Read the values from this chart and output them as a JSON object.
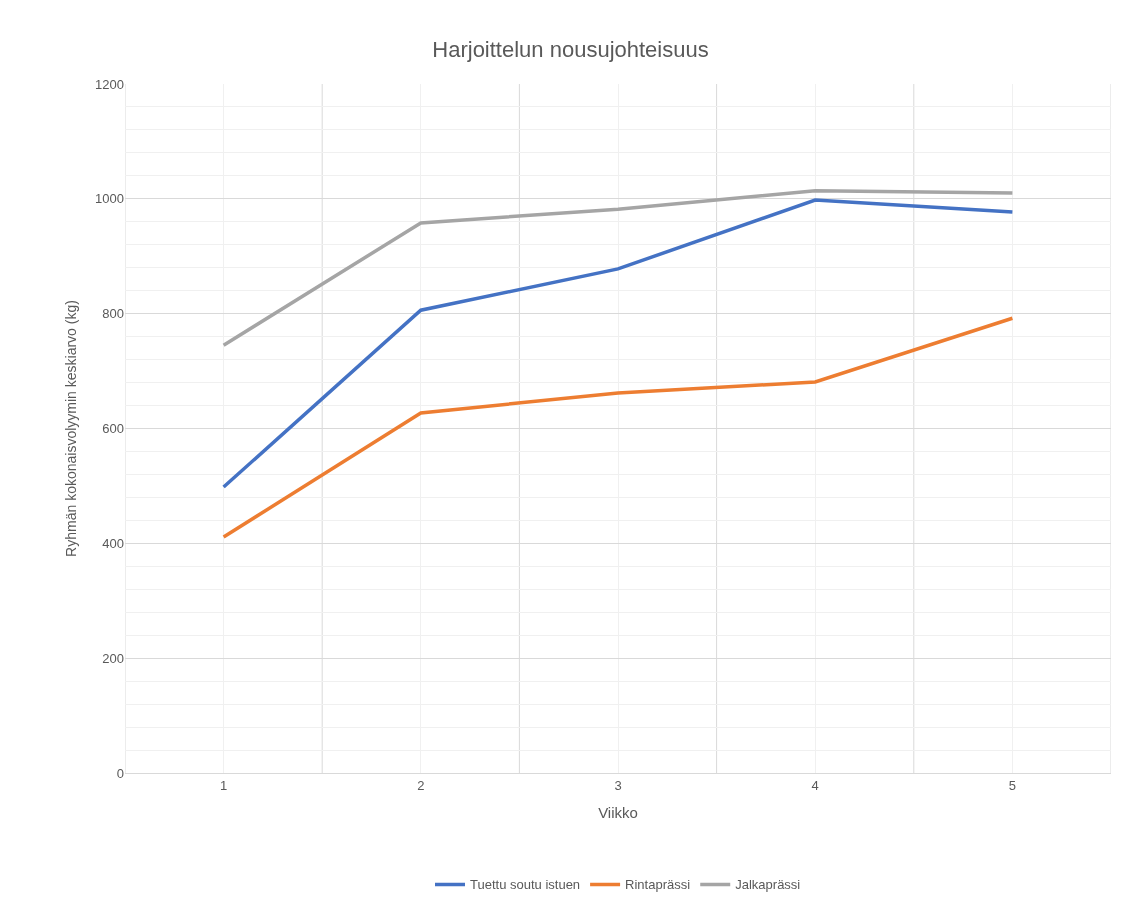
{
  "chart_data": {
    "type": "line",
    "title": "Harjoittelun nousujohteisuus",
    "xlabel": "Viikko",
    "ylabel": "Ryhmän kokonaisvolyymin keskiarvo (kg)",
    "categories": [
      "1",
      "2",
      "3",
      "4",
      "5"
    ],
    "series": [
      {
        "name": "Tuettu soutu istuen",
        "color": "#4472c4",
        "values": [
          498,
          806,
          878,
          998,
          977
        ]
      },
      {
        "name": "Rintaprässi",
        "color": "#ed7d31",
        "values": [
          411,
          627,
          662,
          681,
          792
        ]
      },
      {
        "name": "Jalkaprässi",
        "color": "#a5a5a5",
        "values": [
          745,
          958,
          982,
          1014,
          1010
        ]
      }
    ],
    "ylim": [
      0,
      1200
    ],
    "yticks": [
      0,
      200,
      400,
      600,
      800,
      1000,
      1200
    ],
    "grid": true,
    "legend": "bottom",
    "marker": "none",
    "line_style": "solid"
  }
}
